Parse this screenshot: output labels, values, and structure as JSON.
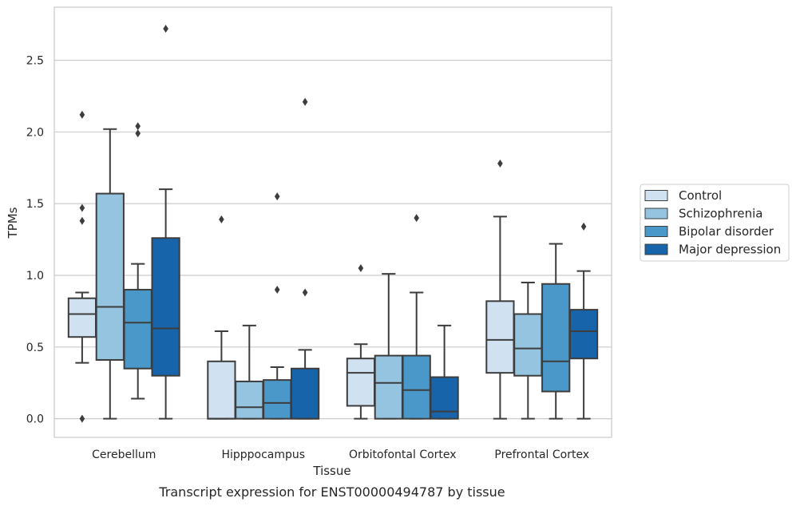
{
  "caption": "Transcript expression for ENST00000494787 by tissue",
  "chart_data": {
    "type": "box",
    "xlabel": "Tissue",
    "ylabel": "TPMs",
    "ylim": [
      -0.13,
      2.87
    ],
    "yticks": [
      "0.0",
      "0.5",
      "1.0",
      "1.5",
      "2.0",
      "2.5"
    ],
    "grid": "horizontal",
    "legend_placement": "right-outside",
    "categories": [
      "Cerebellum",
      "Hipppocampus",
      "Orbitofontal Cortex",
      "Prefrontal Cortex"
    ],
    "series": [
      {
        "name": "Control",
        "color": "#d0e1f2",
        "boxes": [
          {
            "whisker_low": 0.39,
            "q1": 0.57,
            "median": 0.73,
            "q3": 0.84,
            "whisker_high": 0.88,
            "outliers": [
              2.12,
              1.47,
              1.38,
              0.0
            ]
          },
          {
            "whisker_low": 0.0,
            "q1": 0.0,
            "median": 0.0,
            "q3": 0.4,
            "whisker_high": 0.61,
            "outliers": [
              1.39
            ]
          },
          {
            "whisker_low": 0.0,
            "q1": 0.09,
            "median": 0.32,
            "q3": 0.42,
            "whisker_high": 0.52,
            "outliers": [
              1.05
            ]
          },
          {
            "whisker_low": 0.0,
            "q1": 0.32,
            "median": 0.55,
            "q3": 0.82,
            "whisker_high": 1.41,
            "outliers": [
              1.78
            ]
          }
        ]
      },
      {
        "name": "Schizophrenia",
        "color": "#94c4df",
        "boxes": [
          {
            "whisker_low": 0.0,
            "q1": 0.41,
            "median": 0.78,
            "q3": 1.57,
            "whisker_high": 2.02,
            "outliers": []
          },
          {
            "whisker_low": 0.0,
            "q1": 0.0,
            "median": 0.08,
            "q3": 0.26,
            "whisker_high": 0.65,
            "outliers": []
          },
          {
            "whisker_low": 0.0,
            "q1": 0.0,
            "median": 0.25,
            "q3": 0.44,
            "whisker_high": 1.01,
            "outliers": []
          },
          {
            "whisker_low": 0.0,
            "q1": 0.3,
            "median": 0.49,
            "q3": 0.73,
            "whisker_high": 0.95,
            "outliers": []
          }
        ]
      },
      {
        "name": "Bipolar disorder",
        "color": "#4a98c9",
        "boxes": [
          {
            "whisker_low": 0.14,
            "q1": 0.35,
            "median": 0.67,
            "q3": 0.9,
            "whisker_high": 1.08,
            "outliers": [
              2.04,
              1.99
            ]
          },
          {
            "whisker_low": 0.0,
            "q1": 0.0,
            "median": 0.11,
            "q3": 0.27,
            "whisker_high": 0.36,
            "outliers": [
              1.55,
              0.9
            ]
          },
          {
            "whisker_low": 0.0,
            "q1": 0.0,
            "median": 0.2,
            "q3": 0.44,
            "whisker_high": 0.88,
            "outliers": [
              1.4
            ]
          },
          {
            "whisker_low": 0.0,
            "q1": 0.19,
            "median": 0.4,
            "q3": 0.94,
            "whisker_high": 1.22,
            "outliers": []
          }
        ]
      },
      {
        "name": "Major depression",
        "color": "#1764ab",
        "boxes": [
          {
            "whisker_low": 0.0,
            "q1": 0.3,
            "median": 0.63,
            "q3": 1.26,
            "whisker_high": 1.6,
            "outliers": [
              2.72
            ]
          },
          {
            "whisker_low": 0.0,
            "q1": 0.0,
            "median": 0.0,
            "q3": 0.35,
            "whisker_high": 0.48,
            "outliers": [
              2.21,
              0.88
            ]
          },
          {
            "whisker_low": 0.0,
            "q1": 0.0,
            "median": 0.05,
            "q3": 0.29,
            "whisker_high": 0.65,
            "outliers": []
          },
          {
            "whisker_low": 0.0,
            "q1": 0.42,
            "median": 0.61,
            "q3": 0.76,
            "whisker_high": 1.03,
            "outliers": [
              1.34
            ]
          }
        ]
      }
    ]
  }
}
